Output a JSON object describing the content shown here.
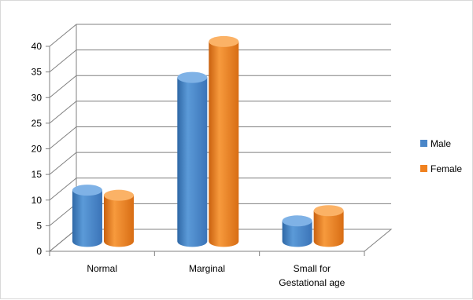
{
  "chart_data": {
    "type": "bar",
    "style": "3d-cylinder",
    "categories": [
      [
        "Normal"
      ],
      [
        "Marginal"
      ],
      [
        "Small for",
        "Gestational age"
      ]
    ],
    "series": [
      {
        "name": "Male",
        "color": "#4a86c8",
        "values": [
          10,
          32,
          4
        ]
      },
      {
        "name": "Female",
        "color": "#f0811f",
        "values": [
          9,
          39,
          6
        ]
      }
    ],
    "ylim": [
      0,
      40
    ],
    "yticks": [
      0,
      5,
      10,
      15,
      20,
      25,
      30,
      35,
      40
    ],
    "grid": true,
    "legend": "right",
    "title": "",
    "xlabel": "",
    "ylabel": ""
  }
}
